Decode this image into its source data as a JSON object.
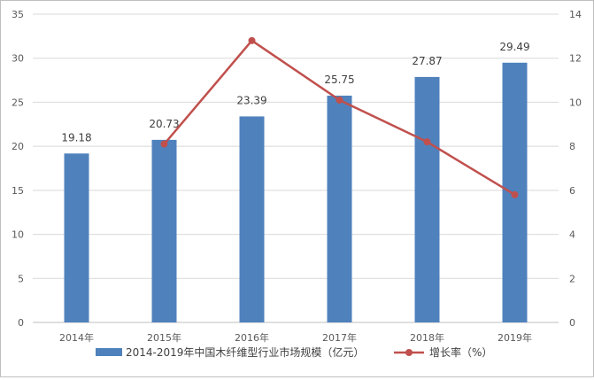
{
  "chart_data": {
    "type": "bar",
    "categories": [
      "2014年",
      "2015年",
      "2016年",
      "2017年",
      "2018年",
      "2019年"
    ],
    "series": [
      {
        "name": "2014-2019年中国木纤维型行业市场规模（亿元）",
        "type": "bar",
        "axis": "left",
        "values": [
          19.18,
          20.73,
          23.39,
          25.75,
          27.87,
          29.49
        ],
        "labels": [
          "19.18",
          "20.73",
          "23.39",
          "25.75",
          "27.87",
          "29.49"
        ],
        "color": "#4f81bd"
      },
      {
        "name": "增长率（%）",
        "type": "line",
        "axis": "right",
        "values": [
          null,
          8.1,
          12.8,
          10.1,
          8.2,
          5.8
        ],
        "color": "#c0504d"
      }
    ],
    "y_left": {
      "min": 0,
      "max": 35,
      "step": 5,
      "tick_labels": [
        "0",
        "5",
        "10",
        "15",
        "20",
        "25",
        "30",
        "35"
      ]
    },
    "y_right": {
      "min": 0,
      "max": 14,
      "step": 2,
      "tick_labels": [
        "0",
        "2",
        "4",
        "6",
        "8",
        "10",
        "12",
        "14"
      ]
    },
    "grid": true,
    "legend": "bottom",
    "colors": {
      "axis_text": "#595959",
      "gridline": "#d9d9d9",
      "frame": "#bfbfbf"
    }
  }
}
